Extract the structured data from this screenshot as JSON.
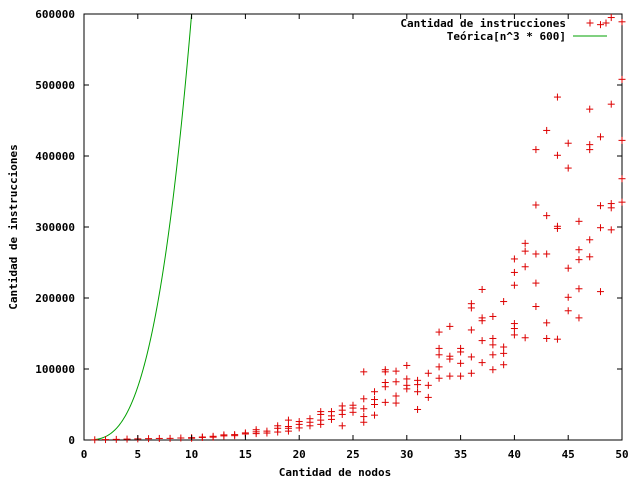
{
  "chart_data": {
    "type": "scatter",
    "title": "",
    "xlabel": "Cantidad de nodos",
    "ylabel": "Cantidad de instrucciones",
    "xlim": [
      0,
      50
    ],
    "ylim": [
      0,
      600000
    ],
    "xticks": [
      "0",
      "5",
      "10",
      "15",
      "20",
      "25",
      "30",
      "35",
      "40",
      "45",
      "50"
    ],
    "yticks": [
      "0",
      "100000",
      "200000",
      "300000",
      "400000",
      "500000",
      "600000"
    ],
    "grid": false,
    "legend_position": "top-right",
    "series": [
      {
        "name": "Cantidad de instrucciones",
        "kind": "scatter",
        "marker": "+",
        "color": "#dd0000",
        "points": [
          [
            1,
            300
          ],
          [
            2,
            600
          ],
          [
            3,
            900
          ],
          [
            4,
            1300
          ],
          [
            5,
            1600
          ],
          [
            6,
            1900
          ],
          [
            7,
            2200
          ],
          [
            8,
            2300
          ],
          [
            9,
            2800
          ],
          [
            10,
            2500
          ],
          [
            10,
            3300
          ],
          [
            11,
            3600
          ],
          [
            11,
            4200
          ],
          [
            12,
            4000
          ],
          [
            12,
            5200
          ],
          [
            13,
            5800
          ],
          [
            13,
            7200
          ],
          [
            14,
            6100
          ],
          [
            14,
            7600
          ],
          [
            15,
            8500
          ],
          [
            15,
            10000
          ],
          [
            16,
            9000
          ],
          [
            16,
            11500
          ],
          [
            16,
            14500
          ],
          [
            17,
            9800
          ],
          [
            17,
            12500
          ],
          [
            18,
            11200
          ],
          [
            18,
            16500
          ],
          [
            18,
            20000
          ],
          [
            19,
            12500
          ],
          [
            19,
            16500
          ],
          [
            19,
            19000
          ],
          [
            19,
            28000
          ],
          [
            20,
            17000
          ],
          [
            20,
            22000
          ],
          [
            20,
            26000
          ],
          [
            21,
            20000
          ],
          [
            21,
            25000
          ],
          [
            21,
            30000
          ],
          [
            22,
            22000
          ],
          [
            22,
            28000
          ],
          [
            22,
            36000
          ],
          [
            22,
            40000
          ],
          [
            23,
            29000
          ],
          [
            23,
            34000
          ],
          [
            23,
            40000
          ],
          [
            24,
            20000
          ],
          [
            24,
            36000
          ],
          [
            24,
            42000
          ],
          [
            24,
            48000
          ],
          [
            25,
            39000
          ],
          [
            25,
            45000
          ],
          [
            25,
            49000
          ],
          [
            26,
            25000
          ],
          [
            26,
            33000
          ],
          [
            26,
            44000
          ],
          [
            26,
            58000
          ],
          [
            26,
            96000
          ],
          [
            27,
            35000
          ],
          [
            27,
            50000
          ],
          [
            27,
            57000
          ],
          [
            27,
            68000
          ],
          [
            28,
            53000
          ],
          [
            28,
            75000
          ],
          [
            28,
            81000
          ],
          [
            28,
            96000
          ],
          [
            28,
            99000
          ],
          [
            29,
            52000
          ],
          [
            29,
            62000
          ],
          [
            29,
            82000
          ],
          [
            29,
            97000
          ],
          [
            30,
            72000
          ],
          [
            30,
            77000
          ],
          [
            30,
            86000
          ],
          [
            30,
            105000
          ],
          [
            31,
            43000
          ],
          [
            31,
            68000
          ],
          [
            31,
            78000
          ],
          [
            31,
            84000
          ],
          [
            32,
            60000
          ],
          [
            32,
            77000
          ],
          [
            32,
            94000
          ],
          [
            33,
            87000
          ],
          [
            33,
            103000
          ],
          [
            33,
            120000
          ],
          [
            33,
            129000
          ],
          [
            33,
            152000
          ],
          [
            34,
            90000
          ],
          [
            34,
            114000
          ],
          [
            34,
            118000
          ],
          [
            34,
            160000
          ],
          [
            35,
            90000
          ],
          [
            35,
            108000
          ],
          [
            35,
            124000
          ],
          [
            35,
            129000
          ],
          [
            36,
            94000
          ],
          [
            36,
            117000
          ],
          [
            36,
            155000
          ],
          [
            36,
            186000
          ],
          [
            36,
            192000
          ],
          [
            37,
            109000
          ],
          [
            37,
            140000
          ],
          [
            37,
            168000
          ],
          [
            37,
            172000
          ],
          [
            37,
            212000
          ],
          [
            38,
            99000
          ],
          [
            38,
            120000
          ],
          [
            38,
            134000
          ],
          [
            38,
            143000
          ],
          [
            38,
            174000
          ],
          [
            39,
            106000
          ],
          [
            39,
            131000
          ],
          [
            39,
            122000
          ],
          [
            39,
            195000
          ],
          [
            40,
            148000
          ],
          [
            40,
            157000
          ],
          [
            40,
            164000
          ],
          [
            40,
            218000
          ],
          [
            40,
            236000
          ],
          [
            40,
            255000
          ],
          [
            41,
            144000
          ],
          [
            41,
            244000
          ],
          [
            41,
            266000
          ],
          [
            41,
            277000
          ],
          [
            42,
            188000
          ],
          [
            42,
            221000
          ],
          [
            42,
            262000
          ],
          [
            42,
            331000
          ],
          [
            42,
            409000
          ],
          [
            43,
            143000
          ],
          [
            43,
            165000
          ],
          [
            43,
            262000
          ],
          [
            43,
            316000
          ],
          [
            43,
            436000
          ],
          [
            44,
            142000
          ],
          [
            44,
            298000
          ],
          [
            44,
            301000
          ],
          [
            44,
            401000
          ],
          [
            44,
            483000
          ],
          [
            45,
            182000
          ],
          [
            45,
            201000
          ],
          [
            45,
            242000
          ],
          [
            45,
            383000
          ],
          [
            45,
            418000
          ],
          [
            46,
            172000
          ],
          [
            46,
            213000
          ],
          [
            46,
            254000
          ],
          [
            46,
            268000
          ],
          [
            46,
            308000
          ],
          [
            47,
            258000
          ],
          [
            47,
            282000
          ],
          [
            47,
            409000
          ],
          [
            47,
            416000
          ],
          [
            47,
            466000
          ],
          [
            48,
            209000
          ],
          [
            48,
            299000
          ],
          [
            48,
            330000
          ],
          [
            48,
            427000
          ],
          [
            48,
            585000
          ],
          [
            49,
            296000
          ],
          [
            49,
            327000
          ],
          [
            49,
            333000
          ],
          [
            49,
            473000
          ],
          [
            49,
            595000
          ],
          [
            50,
            335000
          ],
          [
            50,
            368000
          ],
          [
            50,
            422000
          ],
          [
            50,
            508000
          ],
          [
            50,
            589000
          ]
        ]
      },
      {
        "name": "Teórica[n^3 * 600]",
        "kind": "line",
        "color": "#00a000",
        "formula": "600 * n^3"
      }
    ]
  }
}
